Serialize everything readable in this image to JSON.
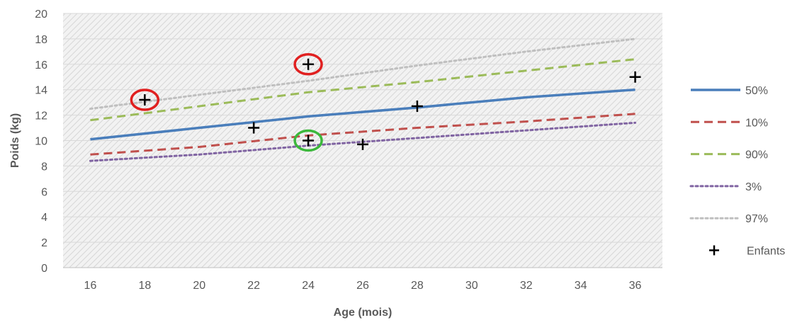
{
  "chart_data": {
    "type": "line",
    "xlabel": "Age (mois)",
    "ylabel": "Poids (kg)",
    "xlim": [
      15,
      37
    ],
    "ylim": [
      0,
      20
    ],
    "x_ticks": [
      16,
      18,
      20,
      22,
      24,
      26,
      28,
      30,
      32,
      34,
      36
    ],
    "y_ticks": [
      0,
      2,
      4,
      6,
      8,
      10,
      12,
      14,
      16,
      18,
      20
    ],
    "grid": "horizontal",
    "plot_background": "diagonal-hatch",
    "legend_position": "right",
    "series": [
      {
        "name": "50%",
        "style": "solid",
        "color": "#4a7ebb",
        "x": [
          16,
          20,
          24,
          28,
          32,
          36
        ],
        "y": [
          10.1,
          11.0,
          11.9,
          12.6,
          13.4,
          14.0
        ]
      },
      {
        "name": "10%",
        "style": "dashed",
        "color": "#c0504d",
        "x": [
          16,
          20,
          24,
          28,
          32,
          36
        ],
        "y": [
          8.9,
          9.5,
          10.4,
          11.0,
          11.5,
          12.1
        ]
      },
      {
        "name": "90%",
        "style": "dashed",
        "color": "#9bbb59",
        "x": [
          16,
          20,
          24,
          28,
          32,
          36
        ],
        "y": [
          11.6,
          12.7,
          13.8,
          14.6,
          15.5,
          16.4
        ]
      },
      {
        "name": "3%",
        "style": "dotted",
        "color": "#8064a2",
        "x": [
          16,
          20,
          24,
          28,
          32,
          36
        ],
        "y": [
          8.4,
          8.9,
          9.6,
          10.2,
          10.8,
          11.4
        ]
      },
      {
        "name": "97%",
        "style": "dotted",
        "color": "#bfbfbf",
        "x": [
          16,
          20,
          24,
          28,
          32,
          36
        ],
        "y": [
          12.5,
          13.6,
          14.7,
          15.9,
          17.0,
          18.0
        ]
      }
    ],
    "points": {
      "name": "Enfants",
      "marker": "plus",
      "color": "#000000",
      "data": [
        {
          "x": 18,
          "y": 13.2
        },
        {
          "x": 22,
          "y": 11.0
        },
        {
          "x": 24,
          "y": 16.0
        },
        {
          "x": 24,
          "y": 10.0
        },
        {
          "x": 26,
          "y": 9.7
        },
        {
          "x": 28,
          "y": 12.7
        },
        {
          "x": 36,
          "y": 15.0
        }
      ]
    },
    "annotations": [
      {
        "type": "circle",
        "color": "#e02020",
        "x": 18,
        "y": 13.2
      },
      {
        "type": "circle",
        "color": "#e02020",
        "x": 24,
        "y": 16.0
      },
      {
        "type": "circle",
        "color": "#3cb83c",
        "x": 24,
        "y": 10.0
      }
    ]
  }
}
